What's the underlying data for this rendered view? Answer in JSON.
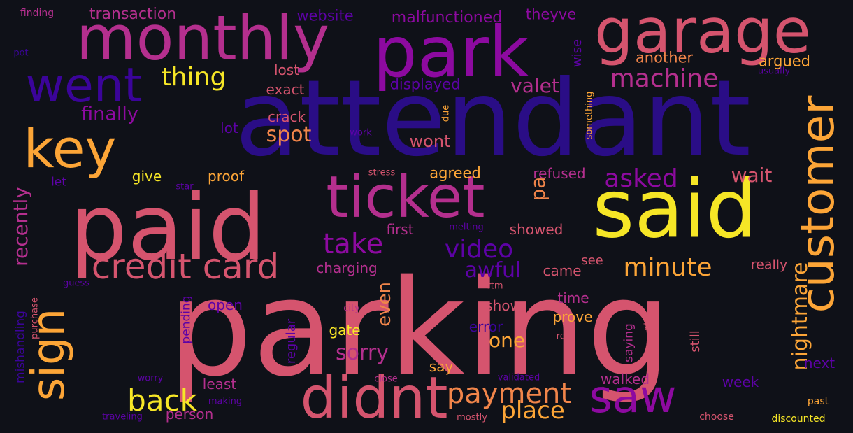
{
  "colors": {
    "background": "#0f1118",
    "yellow": "#f6e626",
    "orange": "#fca537",
    "coral": "#f1854a",
    "pink": "#d5546e",
    "magenta": "#b42f8e",
    "purple": "#8d0aa0",
    "violet": "#5d02a6",
    "indigo": "#3b049a",
    "deep": "#2a0d86"
  },
  "words": [
    {
      "text": "parking",
      "weight": 100,
      "color": "pink",
      "vertical": false
    },
    {
      "text": "attendant",
      "weight": 96,
      "color": "deep",
      "vertical": false
    },
    {
      "text": "paid",
      "weight": 85,
      "color": "pink",
      "vertical": false
    },
    {
      "text": "said",
      "weight": 78,
      "color": "yellow",
      "vertical": false
    },
    {
      "text": "park",
      "weight": 70,
      "color": "purple",
      "vertical": false
    },
    {
      "text": "monthly",
      "weight": 62,
      "color": "magenta",
      "vertical": false
    },
    {
      "text": "garage",
      "weight": 60,
      "color": "pink",
      "vertical": false
    },
    {
      "text": "ticket",
      "weight": 58,
      "color": "magenta",
      "vertical": false
    },
    {
      "text": "didnt",
      "weight": 56,
      "color": "pink",
      "vertical": false
    },
    {
      "text": "key",
      "weight": 55,
      "color": "orange",
      "vertical": false
    },
    {
      "text": "customer",
      "weight": 54,
      "color": "orange",
      "vertical": true
    },
    {
      "text": "went",
      "weight": 52,
      "color": "indigo",
      "vertical": false
    },
    {
      "text": "saw",
      "weight": 52,
      "color": "purple",
      "vertical": false
    },
    {
      "text": "sign",
      "weight": 50,
      "color": "orange",
      "vertical": true
    },
    {
      "text": "credit card",
      "weight": 44,
      "color": "pink",
      "vertical": false
    },
    {
      "text": "back",
      "weight": 40,
      "color": "yellow",
      "vertical": false
    },
    {
      "text": "payment",
      "weight": 38,
      "color": "coral",
      "vertical": false
    },
    {
      "text": "take",
      "weight": 37,
      "color": "purple",
      "vertical": false
    },
    {
      "text": "video",
      "weight": 36,
      "color": "violet",
      "vertical": false
    },
    {
      "text": "minute",
      "weight": 35,
      "color": "orange",
      "vertical": false
    },
    {
      "text": "machine",
      "weight": 34,
      "color": "magenta",
      "vertical": false
    },
    {
      "text": "asked",
      "weight": 34,
      "color": "purple",
      "vertical": false
    },
    {
      "text": "thing",
      "weight": 33,
      "color": "yellow",
      "vertical": false
    },
    {
      "text": "place",
      "weight": 32,
      "color": "orange",
      "vertical": false
    },
    {
      "text": "sorry",
      "weight": 30,
      "color": "magenta",
      "vertical": false
    },
    {
      "text": "awful",
      "weight": 30,
      "color": "violet",
      "vertical": false
    },
    {
      "text": "nightmare",
      "weight": 30,
      "color": "orange",
      "vertical": true
    },
    {
      "text": "recently",
      "weight": 30,
      "color": "magenta",
      "vertical": true
    },
    {
      "text": "wait",
      "weight": 29,
      "color": "pink",
      "vertical": false
    },
    {
      "text": "valet",
      "weight": 28,
      "color": "magenta",
      "vertical": false
    },
    {
      "text": "spot",
      "weight": 28,
      "color": "coral",
      "vertical": false
    },
    {
      "text": "finally",
      "weight": 28,
      "color": "purple",
      "vertical": false
    },
    {
      "text": "one",
      "weight": 28,
      "color": "orange",
      "vertical": false
    },
    {
      "text": "even",
      "weight": 27,
      "color": "coral",
      "vertical": true
    },
    {
      "text": "pa",
      "weight": 26,
      "color": "coral",
      "vertical": true
    },
    {
      "text": "wont",
      "weight": 24,
      "color": "pink",
      "vertical": false
    },
    {
      "text": "transaction",
      "weight": 22,
      "color": "magenta",
      "vertical": false
    },
    {
      "text": "malfunctioned",
      "weight": 22,
      "color": "purple",
      "vertical": false
    },
    {
      "text": "website",
      "weight": 22,
      "color": "violet",
      "vertical": false
    },
    {
      "text": "theyve",
      "weight": 21,
      "color": "purple",
      "vertical": false
    },
    {
      "text": "another",
      "weight": 21,
      "color": "coral",
      "vertical": false
    },
    {
      "text": "argued",
      "weight": 21,
      "color": "orange",
      "vertical": false
    },
    {
      "text": "lost",
      "weight": 20,
      "color": "pink",
      "vertical": false
    },
    {
      "text": "exact",
      "weight": 20,
      "color": "pink",
      "vertical": false
    },
    {
      "text": "displayed",
      "weight": 21,
      "color": "violet",
      "vertical": false
    },
    {
      "text": "crack",
      "weight": 20,
      "color": "pink",
      "vertical": false
    },
    {
      "text": "lot",
      "weight": 20,
      "color": "violet",
      "vertical": false
    },
    {
      "text": "give",
      "weight": 20,
      "color": "yellow",
      "vertical": false
    },
    {
      "text": "proof",
      "weight": 20,
      "color": "orange",
      "vertical": false
    },
    {
      "text": "agreed",
      "weight": 21,
      "color": "orange",
      "vertical": false
    },
    {
      "text": "refused",
      "weight": 20,
      "color": "magenta",
      "vertical": false
    },
    {
      "text": "first",
      "weight": 20,
      "color": "magenta",
      "vertical": false
    },
    {
      "text": "showed",
      "weight": 20,
      "color": "pink",
      "vertical": false
    },
    {
      "text": "charging",
      "weight": 20,
      "color": "magenta",
      "vertical": false
    },
    {
      "text": "came",
      "weight": 20,
      "color": "pink",
      "vertical": false
    },
    {
      "text": "see",
      "weight": 18,
      "color": "pink",
      "vertical": false
    },
    {
      "text": "really",
      "weight": 19,
      "color": "pink",
      "vertical": false
    },
    {
      "text": "open",
      "weight": 20,
      "color": "violet",
      "vertical": false
    },
    {
      "text": "show",
      "weight": 20,
      "color": "pink",
      "vertical": false
    },
    {
      "text": "time",
      "weight": 20,
      "color": "magenta",
      "vertical": false
    },
    {
      "text": "prove",
      "weight": 20,
      "color": "orange",
      "vertical": false
    },
    {
      "text": "gate",
      "weight": 20,
      "color": "yellow",
      "vertical": false
    },
    {
      "text": "error",
      "weight": 20,
      "color": "indigo",
      "vertical": false
    },
    {
      "text": "say",
      "weight": 20,
      "color": "orange",
      "vertical": false
    },
    {
      "text": "walked",
      "weight": 20,
      "color": "magenta",
      "vertical": false
    },
    {
      "text": "week",
      "weight": 20,
      "color": "violet",
      "vertical": false
    },
    {
      "text": "next",
      "weight": 20,
      "color": "violet",
      "vertical": false
    },
    {
      "text": "least",
      "weight": 20,
      "color": "magenta",
      "vertical": false
    },
    {
      "text": "person",
      "weight": 20,
      "color": "magenta",
      "vertical": false
    },
    {
      "text": "let",
      "weight": 17,
      "color": "violet",
      "vertical": false
    },
    {
      "text": "regular",
      "weight": 18,
      "color": "violet",
      "vertical": true
    },
    {
      "text": "pending",
      "weight": 17,
      "color": "violet",
      "vertical": true
    },
    {
      "text": "saying",
      "weight": 17,
      "color": "magenta",
      "vertical": true
    },
    {
      "text": "still",
      "weight": 18,
      "color": "pink",
      "vertical": true
    },
    {
      "text": "wise",
      "weight": 18,
      "color": "violet",
      "vertical": true
    },
    {
      "text": "mishandling",
      "weight": 17,
      "color": "indigo",
      "vertical": true
    },
    {
      "text": "finding",
      "weight": 14,
      "color": "magenta",
      "vertical": false
    },
    {
      "text": "pot",
      "weight": 13,
      "color": "indigo",
      "vertical": false
    },
    {
      "text": "usually",
      "weight": 13,
      "color": "violet",
      "vertical": false
    },
    {
      "text": "work",
      "weight": 13,
      "color": "violet",
      "vertical": false
    },
    {
      "text": "stress",
      "weight": 13,
      "color": "pink",
      "vertical": false
    },
    {
      "text": "star",
      "weight": 13,
      "color": "violet",
      "vertical": false
    },
    {
      "text": "melting",
      "weight": 13,
      "color": "violet",
      "vertical": false
    },
    {
      "text": "guess",
      "weight": 13,
      "color": "violet",
      "vertical": false
    },
    {
      "text": "purchase",
      "weight": 13,
      "color": "pink",
      "vertical": true
    },
    {
      "text": "rtm",
      "weight": 13,
      "color": "pink",
      "vertical": false
    },
    {
      "text": "city",
      "weight": 13,
      "color": "magenta",
      "vertical": false
    },
    {
      "text": "real",
      "weight": 13,
      "color": "pink",
      "vertical": false
    },
    {
      "text": "nj",
      "weight": 13,
      "color": "pink",
      "vertical": true
    },
    {
      "text": "worry",
      "weight": 13,
      "color": "violet",
      "vertical": false
    },
    {
      "text": "making",
      "weight": 13,
      "color": "violet",
      "vertical": false
    },
    {
      "text": "close",
      "weight": 13,
      "color": "magenta",
      "vertical": false
    },
    {
      "text": "validated",
      "weight": 13,
      "color": "violet",
      "vertical": false
    },
    {
      "text": "choose",
      "weight": 14,
      "color": "pink",
      "vertical": false
    },
    {
      "text": "past",
      "weight": 14,
      "color": "orange",
      "vertical": false
    },
    {
      "text": "discounted",
      "weight": 14,
      "color": "yellow",
      "vertical": false
    },
    {
      "text": "traveling",
      "weight": 13,
      "color": "violet",
      "vertical": false
    },
    {
      "text": "mostly",
      "weight": 13,
      "color": "pink",
      "vertical": false
    },
    {
      "text": "due",
      "weight": 13,
      "color": "orange",
      "vertical": true
    },
    {
      "text": "something",
      "weight": 13,
      "color": "orange",
      "vertical": true
    }
  ]
}
